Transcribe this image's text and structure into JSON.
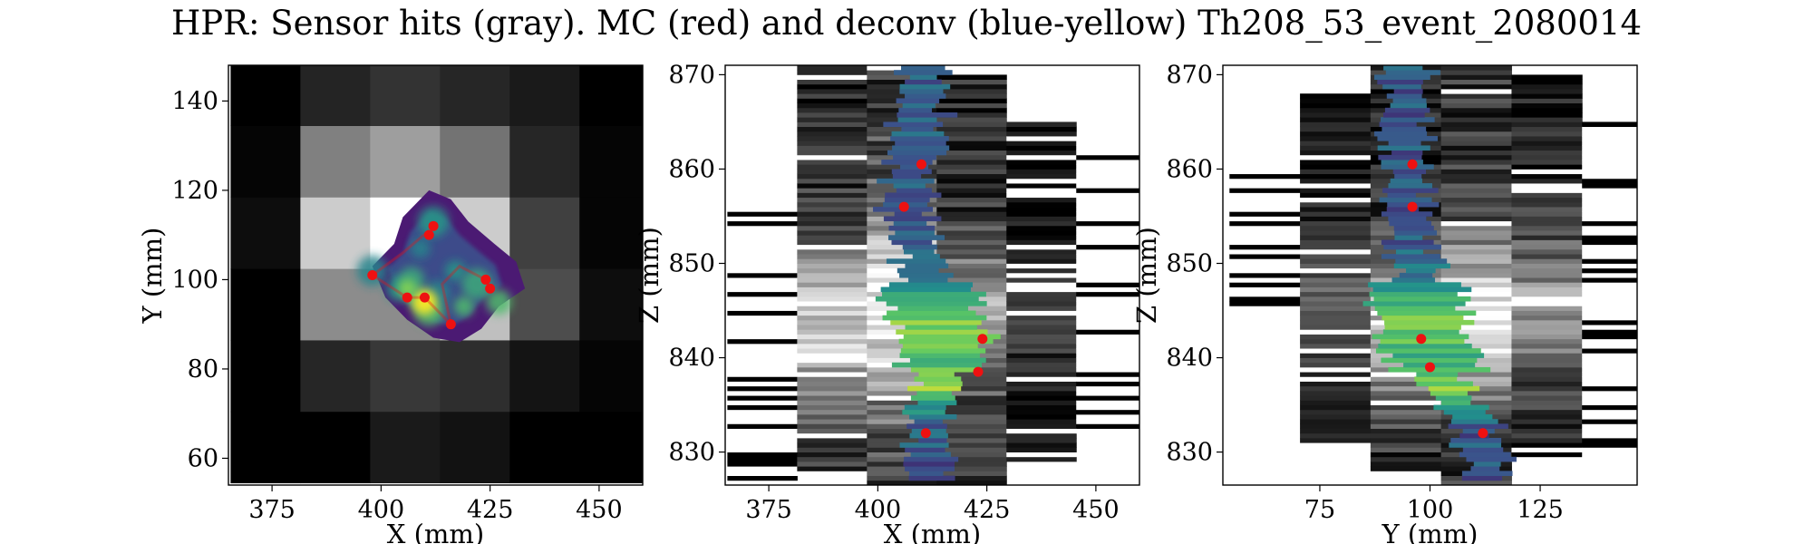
{
  "title": "HPR: Sensor hits (gray). MC (red) and deconv (blue-yellow) Th208_53_event_2080014",
  "colors": {
    "mc": "#ee1111",
    "deconv_low": "#440154",
    "deconv_mid": "#21918c",
    "deconv_high": "#fde725"
  },
  "chart_data": [
    {
      "type": "heatmap",
      "xlabel": "X (mm)",
      "ylabel": "Y (mm)",
      "xlim": [
        365,
        460
      ],
      "ylim": [
        54,
        148
      ],
      "xticks": [
        375,
        400,
        425,
        450
      ],
      "yticks": [
        60,
        80,
        100,
        120,
        140
      ],
      "sensor_grid": {
        "x_edges": [
          365.5,
          381.5,
          397.5,
          413.5,
          429.5,
          445.5,
          461.5
        ],
        "y_edges": [
          54.5,
          70.5,
          86.5,
          102.5,
          118.5,
          134.5,
          148.5
        ]
      },
      "sensor_hits": [
        [
          0.0,
          0.0,
          0.1,
          0.07,
          0.0,
          0.0
        ],
        [
          0.0,
          0.15,
          0.22,
          0.18,
          0.08,
          0.02
        ],
        [
          0.0,
          0.55,
          0.55,
          0.75,
          0.3,
          0.05
        ],
        [
          0.05,
          0.8,
          1.0,
          0.8,
          0.25,
          0.02
        ],
        [
          0.02,
          0.5,
          0.62,
          0.45,
          0.15,
          0.02
        ],
        [
          0.0,
          0.14,
          0.2,
          0.15,
          0.1,
          0.0
        ]
      ],
      "mc_points": [
        [
          398,
          101
        ],
        [
          406,
          96
        ],
        [
          410,
          96
        ],
        [
          411,
          110
        ],
        [
          412,
          112
        ],
        [
          416,
          90
        ],
        [
          424,
          100
        ],
        [
          425,
          98
        ]
      ],
      "deconv_points": [
        [
          398,
          102
        ],
        [
          404,
          98
        ],
        [
          408,
          96
        ],
        [
          411,
          93
        ],
        [
          413,
          97
        ],
        [
          417,
          102
        ],
        [
          422,
          99
        ],
        [
          427,
          95
        ],
        [
          409,
          107
        ],
        [
          412,
          113
        ],
        [
          407,
          100
        ],
        [
          419,
          94
        ]
      ]
    },
    {
      "type": "heatmap",
      "xlabel": "X (mm)",
      "ylabel": "Z (mm)",
      "xlim": [
        365,
        460
      ],
      "ylim": [
        826.5,
        871
      ],
      "xticks": [
        375,
        400,
        425,
        450
      ],
      "yticks": [
        830,
        840,
        850,
        860,
        870
      ],
      "sensor_grid": {
        "x_edges": [
          365.5,
          381.5,
          397.5,
          413.5,
          429.5,
          445.5,
          461.5
        ]
      },
      "mc_points": [
        [
          411,
          832
        ],
        [
          423,
          838.5
        ],
        [
          424,
          842
        ],
        [
          406,
          856
        ],
        [
          410,
          860.5
        ]
      ],
      "deconv_track": [
        [
          409,
          871
        ],
        [
          410,
          866
        ],
        [
          408,
          860
        ],
        [
          407,
          855
        ],
        [
          410,
          850
        ],
        [
          413,
          845
        ],
        [
          416,
          842
        ],
        [
          414,
          838
        ],
        [
          412,
          834
        ],
        [
          411,
          829
        ]
      ]
    },
    {
      "type": "heatmap",
      "xlabel": "Y (mm)",
      "ylabel": "Z (mm)",
      "xlim": [
        53,
        147
      ],
      "ylim": [
        826.5,
        871
      ],
      "xticks": [
        75,
        100,
        125
      ],
      "yticks": [
        830,
        840,
        850,
        860,
        870
      ],
      "sensor_grid": {
        "x_edges": [
          54.5,
          70.5,
          86.5,
          102.5,
          118.5,
          134.5,
          150.5
        ]
      },
      "mc_points": [
        [
          112,
          832
        ],
        [
          100,
          839
        ],
        [
          98,
          842
        ],
        [
          96,
          856
        ],
        [
          96,
          860.5
        ]
      ],
      "deconv_track": [
        [
          95,
          871
        ],
        [
          94,
          866
        ],
        [
          94,
          860
        ],
        [
          95,
          855
        ],
        [
          97,
          850
        ],
        [
          98,
          845
        ],
        [
          99,
          842
        ],
        [
          102,
          838
        ],
        [
          108,
          834
        ],
        [
          113,
          829
        ]
      ]
    }
  ]
}
